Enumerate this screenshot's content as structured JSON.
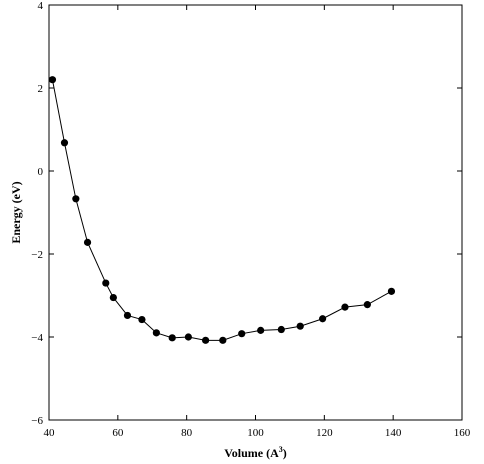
{
  "chart_data": {
    "type": "line",
    "title": "",
    "xlabel": "Volume (A",
    "xlabel_superscript": "3",
    "xlabel_suffix": ")",
    "ylabel": "Energy (eV)",
    "xlim": [
      40,
      160
    ],
    "ylim": [
      -6,
      4
    ],
    "x_ticks": [
      40,
      60,
      80,
      100,
      120,
      140,
      160
    ],
    "y_ticks": [
      4,
      2,
      0,
      -2,
      -4,
      -6
    ],
    "x_tick_labels": [
      "40",
      "60",
      "80",
      "100",
      "120",
      "140",
      "160"
    ],
    "y_tick_labels": [
      "4",
      "2",
      "0",
      "−2",
      "−4",
      "−6"
    ],
    "grid": false,
    "legend": "none",
    "series": [
      {
        "x": [
          41,
          44.5,
          47.8,
          51.2,
          56.5,
          58.7,
          62.8,
          67,
          71.2,
          75.8,
          80.5,
          85.5,
          90.5,
          96,
          101.5,
          107.5,
          113,
          119.5,
          126,
          132.5,
          139.5
        ],
        "y": [
          2.2,
          0.68,
          -0.67,
          -1.72,
          -2.7,
          -3.05,
          -3.48,
          -3.58,
          -3.9,
          -4.02,
          -4.0,
          -4.08,
          -4.08,
          -3.92,
          -3.84,
          -3.82,
          -3.74,
          -3.56,
          -3.28,
          -3.22,
          -2.9
        ],
        "color": "#000000",
        "marker": "circle"
      }
    ]
  }
}
